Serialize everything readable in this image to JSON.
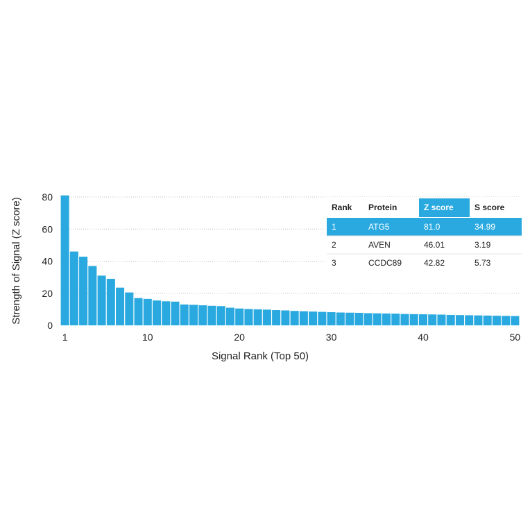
{
  "chart_data": {
    "type": "bar",
    "xlabel": "Signal Rank (Top 50)",
    "ylabel": "Strength of Signal (Z score)",
    "ylim": [
      0,
      80
    ],
    "yticks": [
      0,
      20,
      40,
      60,
      80
    ],
    "xticks": [
      1,
      10,
      20,
      30,
      40,
      50
    ],
    "grid": "horizontal dotted",
    "bar_color": "#29a9e0",
    "x": [
      1,
      2,
      3,
      4,
      5,
      6,
      7,
      8,
      9,
      10,
      11,
      12,
      13,
      14,
      15,
      16,
      17,
      18,
      19,
      20,
      21,
      22,
      23,
      24,
      25,
      26,
      27,
      28,
      29,
      30,
      31,
      32,
      33,
      34,
      35,
      36,
      37,
      38,
      39,
      40,
      41,
      42,
      43,
      44,
      45,
      46,
      47,
      48,
      49,
      50
    ],
    "values": [
      81.0,
      46.01,
      42.82,
      37.0,
      31.0,
      29.0,
      23.5,
      20.5,
      17.0,
      16.5,
      15.5,
      15.0,
      14.8,
      13.0,
      12.8,
      12.5,
      12.2,
      12.0,
      11.0,
      10.5,
      10.2,
      10.0,
      9.8,
      9.5,
      9.3,
      9.0,
      8.8,
      8.6,
      8.4,
      8.2,
      8.0,
      7.9,
      7.8,
      7.6,
      7.5,
      7.4,
      7.3,
      7.1,
      7.0,
      6.9,
      6.8,
      6.7,
      6.5,
      6.4,
      6.3,
      6.2,
      6.1,
      6.0,
      5.9,
      5.8
    ],
    "table": {
      "headers": [
        "Rank",
        "Protein",
        "Z score",
        "S score"
      ],
      "rows": [
        [
          "1",
          "ATG5",
          "81.0",
          "34.99"
        ],
        [
          "2",
          "AVEN",
          "46.01",
          "3.19"
        ],
        [
          "3",
          "CCDC89",
          "42.82",
          "5.73"
        ]
      ],
      "highlight_color": "#29a9e0",
      "highlight_row": 0,
      "highlight_columns": [
        2
      ]
    }
  }
}
